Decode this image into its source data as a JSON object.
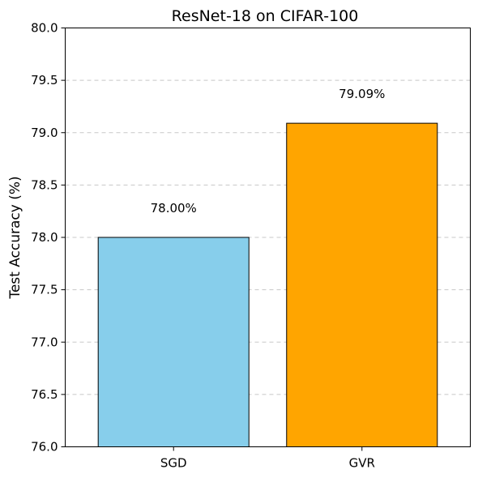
{
  "chart_data": {
    "type": "bar",
    "title": "ResNet-18 on CIFAR-100",
    "xlabel": "",
    "ylabel": "Test Accuracy (%)",
    "categories": [
      "SGD",
      "GVR"
    ],
    "values": [
      78.0,
      79.09
    ],
    "data_labels": [
      "78.00%",
      "79.09%"
    ],
    "colors": [
      "#87CEEB",
      "#FFA500"
    ],
    "ylim": [
      76.0,
      80.0
    ],
    "yticks": [
      "76.0",
      "76.5",
      "77.0",
      "77.5",
      "78.0",
      "78.5",
      "79.0",
      "79.5",
      "80.0"
    ],
    "grid": "y-dashed",
    "legend": "none"
  }
}
